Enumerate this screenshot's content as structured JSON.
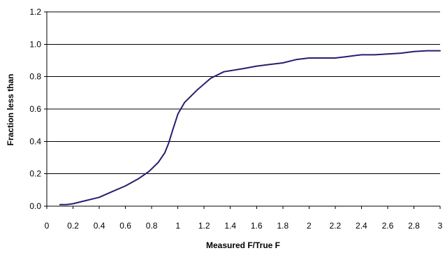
{
  "chart_data": {
    "type": "line",
    "title": "",
    "xlabel": "Measured F/True F",
    "ylabel": "Fraction less than",
    "xlim": [
      0,
      3
    ],
    "ylim": [
      0,
      1.2
    ],
    "x_ticks": [
      "0",
      "0.2",
      "0.4",
      "0.6",
      "0.8",
      "1",
      "1.2",
      "1.4",
      "1.6",
      "1.8",
      "2",
      "2.2",
      "2.4",
      "2.6",
      "2.8",
      "3"
    ],
    "y_ticks": [
      "0.0",
      "0.2",
      "0.4",
      "0.6",
      "0.8",
      "1.0",
      "1.2"
    ],
    "grid": "horizontal",
    "legend": "none",
    "colors": {
      "line": "#2e1a6e",
      "grid": "#000000",
      "axis": "#000000"
    },
    "series": [
      {
        "x": [
          0.1,
          0.15,
          0.2,
          0.3,
          0.4,
          0.5,
          0.6,
          0.7,
          0.78,
          0.85,
          0.9,
          0.93,
          0.96,
          1.0,
          1.05,
          1.15,
          1.25,
          1.35,
          1.5,
          1.6,
          1.7,
          1.8,
          1.9,
          2.0,
          2.1,
          2.2,
          2.3,
          2.4,
          2.5,
          2.6,
          2.7,
          2.8,
          2.9,
          3.0
        ],
        "y": [
          0.01,
          0.01,
          0.015,
          0.035,
          0.055,
          0.09,
          0.125,
          0.17,
          0.215,
          0.27,
          0.33,
          0.39,
          0.47,
          0.57,
          0.64,
          0.72,
          0.79,
          0.83,
          0.85,
          0.865,
          0.875,
          0.885,
          0.905,
          0.915,
          0.915,
          0.915,
          0.925,
          0.935,
          0.935,
          0.94,
          0.945,
          0.955,
          0.96,
          0.96
        ]
      }
    ]
  }
}
